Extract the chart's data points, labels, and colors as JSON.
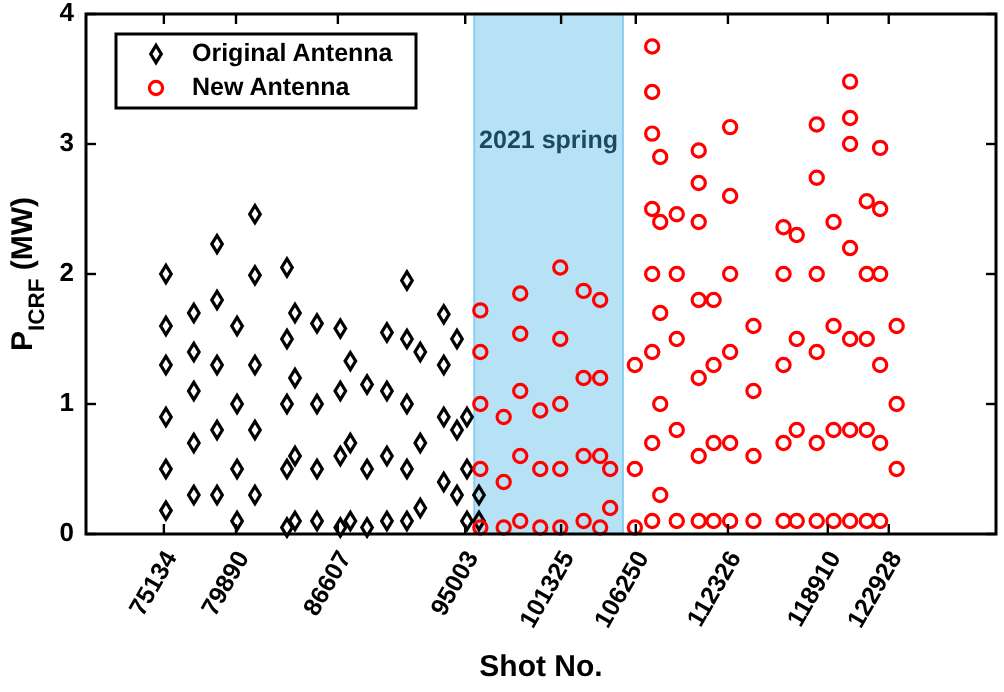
{
  "chart_data": {
    "type": "scatter",
    "xlabel": "Shot No.",
    "ylabel": "P$_{ICRF}$ (MW)",
    "xlim": [
      70000,
      130000
    ],
    "xticks": [
      75134,
      79890,
      86607,
      95003,
      101325,
      106250,
      112326,
      118910,
      122928
    ],
    "ylim": [
      0,
      4
    ],
    "yticks": [
      0,
      1,
      2,
      3,
      4
    ],
    "grid": false,
    "legend": "top left",
    "bands": [
      {
        "axis": "x",
        "from": 95600,
        "to": 105400,
        "label": "2021 spring",
        "color": "#87cfee"
      }
    ],
    "series": [
      {
        "name": "Original Antenna",
        "color": "#000000",
        "marker": "diamond",
        "x": [
          75270,
          75270,
          75270,
          75270,
          75270,
          75270,
          77110,
          77110,
          77110,
          77110,
          77110,
          78640,
          78640,
          78640,
          78640,
          78640,
          79960,
          79960,
          79960,
          79960,
          81140,
          81140,
          81140,
          81140,
          81140,
          83250,
          83250,
          83250,
          83250,
          83250,
          83780,
          83780,
          83780,
          83780,
          85230,
          85230,
          85230,
          85230,
          86770,
          86770,
          86770,
          86770,
          87430,
          87430,
          87430,
          88530,
          88530,
          88530,
          89840,
          89840,
          89840,
          89840,
          91160,
          91160,
          91160,
          91160,
          91160,
          92040,
          92040,
          92040,
          93590,
          93590,
          93590,
          93590,
          94460,
          94460,
          94460,
          95120,
          95120,
          95120,
          95910,
          95910
        ],
        "values": [
          0.18,
          0.5,
          0.9,
          1.3,
          1.6,
          2.0,
          0.3,
          0.7,
          1.1,
          1.4,
          1.7,
          0.3,
          0.8,
          1.3,
          1.8,
          2.23,
          0.1,
          0.5,
          1.0,
          1.6,
          0.3,
          0.8,
          1.3,
          1.99,
          2.46,
          0.05,
          0.5,
          1.0,
          1.5,
          2.05,
          0.1,
          0.6,
          1.2,
          1.7,
          0.1,
          0.5,
          1.0,
          1.62,
          0.05,
          0.6,
          1.1,
          1.58,
          0.1,
          0.7,
          1.33,
          0.05,
          0.5,
          1.15,
          0.1,
          0.6,
          1.1,
          1.55,
          0.1,
          0.5,
          1.0,
          1.5,
          1.95,
          0.2,
          0.7,
          1.4,
          0.4,
          0.9,
          1.3,
          1.69,
          0.3,
          0.8,
          1.5,
          0.1,
          0.5,
          0.9,
          0.1,
          0.3
        ]
      },
      {
        "name": "New Antenna",
        "color": "#ff0000",
        "marker": "circle",
        "x": [
          96000,
          96000,
          96000,
          96000,
          96000,
          97540,
          97540,
          97540,
          98630,
          98630,
          98630,
          98630,
          98630,
          99950,
          99950,
          99950,
          101270,
          101270,
          101270,
          101270,
          101270,
          102810,
          102810,
          102810,
          102810,
          103900,
          103900,
          103900,
          103900,
          104560,
          104560,
          106190,
          106190,
          106190,
          107330,
          107330,
          107330,
          107330,
          107330,
          107330,
          107330,
          107330,
          107860,
          107860,
          107860,
          107860,
          107860,
          108950,
          108950,
          108950,
          108950,
          108950,
          110400,
          110400,
          110400,
          110400,
          110400,
          110400,
          110400,
          111380,
          111380,
          111380,
          111380,
          112470,
          112470,
          112470,
          112470,
          112470,
          112470,
          114010,
          114010,
          114010,
          114010,
          115990,
          115990,
          115990,
          115990,
          115990,
          116860,
          116860,
          116860,
          116860,
          118180,
          118180,
          118180,
          118180,
          118180,
          118180,
          119290,
          119290,
          119290,
          119290,
          120380,
          120380,
          120380,
          120380,
          120380,
          120380,
          120380,
          121480,
          121480,
          121480,
          121480,
          121480,
          122360,
          122360,
          122360,
          122360,
          122360,
          122360,
          123450,
          123450,
          123450
        ],
        "values": [
          0.05,
          0.5,
          1.0,
          1.4,
          1.72,
          0.05,
          0.4,
          0.9,
          0.1,
          0.6,
          1.1,
          1.54,
          1.85,
          0.05,
          0.5,
          0.95,
          0.05,
          0.5,
          1.0,
          1.5,
          2.05,
          0.1,
          0.6,
          1.2,
          1.87,
          0.05,
          0.6,
          1.2,
          1.8,
          0.2,
          0.5,
          0.05,
          0.5,
          1.3,
          0.1,
          0.7,
          1.4,
          2.0,
          2.5,
          3.08,
          3.4,
          3.75,
          0.3,
          1.0,
          1.7,
          2.4,
          2.9,
          0.1,
          0.8,
          1.5,
          2.0,
          2.46,
          0.1,
          0.6,
          1.2,
          1.8,
          2.4,
          2.7,
          2.95,
          0.1,
          0.7,
          1.3,
          1.8,
          0.1,
          0.7,
          1.4,
          2.0,
          2.6,
          3.13,
          0.1,
          0.6,
          1.1,
          1.6,
          0.1,
          0.7,
          1.3,
          2.0,
          2.36,
          0.1,
          0.8,
          1.5,
          2.3,
          0.1,
          0.7,
          1.4,
          2.0,
          2.74,
          3.15,
          0.1,
          0.8,
          1.6,
          2.4,
          0.1,
          0.8,
          1.5,
          2.2,
          3.0,
          3.2,
          3.48,
          0.1,
          0.8,
          1.5,
          2.0,
          2.56,
          0.1,
          0.7,
          1.3,
          2.0,
          2.5,
          2.97,
          0.5,
          1.0,
          1.6
        ]
      }
    ]
  }
}
